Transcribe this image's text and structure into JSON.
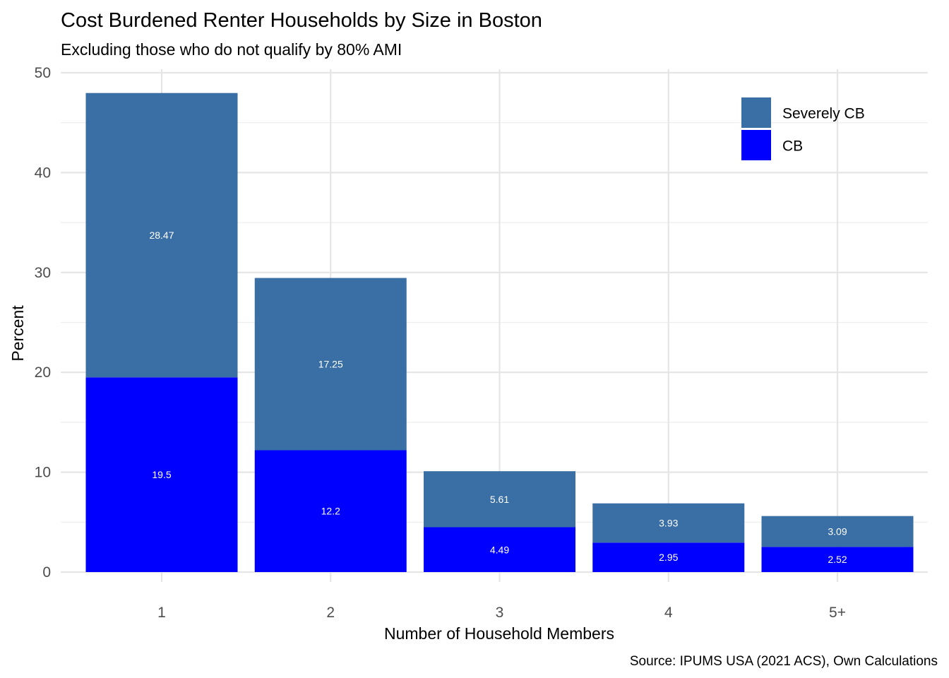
{
  "chart_data": {
    "type": "bar",
    "stacked": true,
    "title": "Cost Burdened Renter Households by Size in Boston",
    "subtitle": "Excluding those who do not qualify by 80% AMI",
    "xlabel": "Number of Household Members",
    "ylabel": "Percent",
    "caption": "Source: IPUMS USA (2021 ACS), Own Calculations",
    "categories": [
      "1",
      "2",
      "3",
      "4",
      "5+"
    ],
    "ylim": [
      0,
      50
    ],
    "yticks": [
      0,
      10,
      20,
      30,
      40,
      50
    ],
    "grid": true,
    "legend_position": "top-right",
    "series": [
      {
        "name": "CB",
        "color": "#0000ff",
        "values": [
          19.5,
          12.2,
          4.49,
          2.95,
          2.52
        ],
        "labels": [
          "19.5",
          "12.2",
          "4.49",
          "2.95",
          "2.52"
        ]
      },
      {
        "name": "Severely CB",
        "color": "#3a6fa6",
        "values": [
          28.47,
          17.25,
          5.61,
          3.93,
          3.09
        ],
        "labels": [
          "28.47",
          "17.25",
          "5.61",
          "3.93",
          "3.09"
        ]
      }
    ],
    "legend_order": [
      "Severely CB",
      "CB"
    ]
  }
}
